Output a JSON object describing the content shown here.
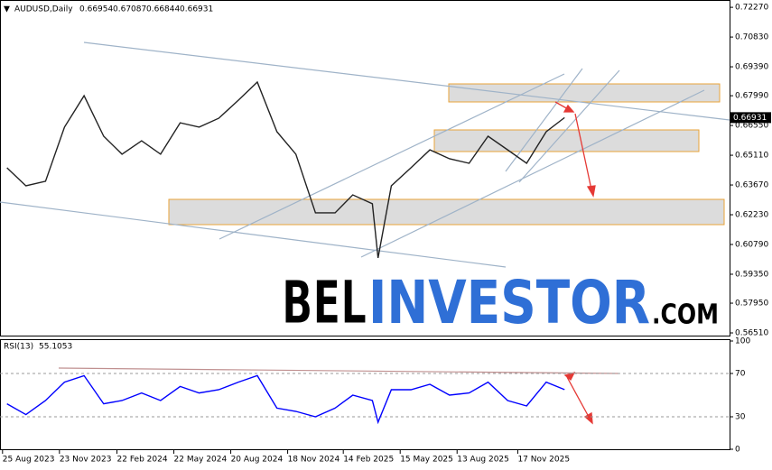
{
  "chart_data": [
    {
      "type": "line",
      "title": "AUDUSD,Daily",
      "ohlc": [
        0.66954,
        0.67087,
        0.66844,
        0.66931
      ],
      "x": [
        "2023-09-01",
        "2023-10-01",
        "2023-11-01",
        "2023-12-01",
        "2024-01-01",
        "2024-02-01",
        "2024-03-01",
        "2024-04-01",
        "2024-05-01",
        "2024-06-01",
        "2024-07-01",
        "2024-08-01",
        "2024-09-01",
        "2024-10-01",
        "2024-11-01",
        "2024-12-01",
        "2025-01-01",
        "2025-02-01",
        "2025-03-01",
        "2025-04-01",
        "2025-04-10",
        "2025-05-01",
        "2025-06-01",
        "2025-07-01",
        "2025-08-01",
        "2025-09-01",
        "2025-10-01",
        "2025-11-01",
        "2025-12-01",
        "2026-01-01",
        "2026-01-30"
      ],
      "series": [
        {
          "color": "#222222",
          "values": [
            0.645,
            0.6363,
            0.6385,
            0.6647,
            0.6799,
            0.6603,
            0.6516,
            0.6581,
            0.6516,
            0.6668,
            0.6647,
            0.669,
            0.6777,
            0.6865,
            0.6625,
            0.6516,
            0.6232,
            0.6232,
            0.6319,
            0.6276,
            0.6014,
            0.6363,
            0.645,
            0.6537,
            0.6494,
            0.6472,
            0.6603,
            0.6537,
            0.6472,
            0.6625,
            0.66931
          ]
        }
      ],
      "xlim": [
        "2023-08-21",
        "2026-10-18"
      ],
      "ylim": [
        0.5638,
        0.7258
      ],
      "yticks": [
        {
          "value": 0.7227,
          "label": "0.72270"
        },
        {
          "value": 0.7083,
          "label": "0.70830"
        },
        {
          "value": 0.6939,
          "label": "0.69390"
        },
        {
          "value": 0.6799,
          "label": "0.67990"
        },
        {
          "value": 0.6655,
          "label": "0.66550"
        },
        {
          "value": 0.6511,
          "label": "0.65110"
        },
        {
          "value": 0.6367,
          "label": "0.63670"
        },
        {
          "value": 0.6223,
          "label": "0.62230"
        },
        {
          "value": 0.6079,
          "label": "0.60790"
        },
        {
          "value": 0.5935,
          "label": "0.59350"
        },
        {
          "value": 0.5795,
          "label": "0.57950"
        },
        {
          "value": 0.5651,
          "label": "0.56510"
        }
      ]
    },
    {
      "type": "line",
      "title": "RSI(13)",
      "x": [
        "2023-09-01",
        "2023-10-01",
        "2023-11-01",
        "2023-12-01",
        "2024-01-01",
        "2024-02-01",
        "2024-03-01",
        "2024-04-01",
        "2024-05-01",
        "2024-06-01",
        "2024-07-01",
        "2024-08-01",
        "2024-09-01",
        "2024-10-01",
        "2024-11-01",
        "2024-12-01",
        "2025-01-01",
        "2025-02-01",
        "2025-03-01",
        "2025-04-01",
        "2025-04-10",
        "2025-05-01",
        "2025-06-01",
        "2025-07-01",
        "2025-08-01",
        "2025-09-01",
        "2025-10-01",
        "2025-11-01",
        "2025-12-01",
        "2026-01-01",
        "2026-01-30"
      ],
      "series": [
        {
          "color": "#0000ff",
          "values": [
            42,
            32,
            45,
            62,
            68,
            42,
            45,
            52,
            45,
            58,
            52,
            55,
            62,
            68,
            38,
            35,
            30,
            38,
            50,
            45,
            25,
            55,
            55,
            60,
            50,
            52,
            62,
            45,
            40,
            62,
            55.1053
          ]
        }
      ],
      "xlim": [
        "2023-08-21",
        "2026-10-18"
      ],
      "ylim": [
        0,
        100
      ],
      "yticks": [
        100,
        70,
        30,
        0
      ],
      "xticks": [
        {
          "value": "2023-08-25",
          "label": "25 Aug 2023"
        },
        {
          "value": "2023-11-23",
          "label": "23 Nov 2023"
        },
        {
          "value": "2024-02-22",
          "label": "22 Feb 2024"
        },
        {
          "value": "2024-05-22",
          "label": "22 May 2024"
        },
        {
          "value": "2024-08-20",
          "label": "20 Aug 2024"
        },
        {
          "value": "2024-11-18",
          "label": "18 Nov 2024"
        },
        {
          "value": "2025-02-14",
          "label": "14 Feb 2025"
        },
        {
          "value": "2025-05-15",
          "label": "15 May 2025"
        },
        {
          "value": "2025-08-13",
          "label": "13 Aug 2025"
        },
        {
          "value": "2025-11-17",
          "label": "17 Nov 2025"
        }
      ]
    }
  ],
  "watermark": [
    "BEL",
    "INVESTOR",
    ".COM"
  ]
}
